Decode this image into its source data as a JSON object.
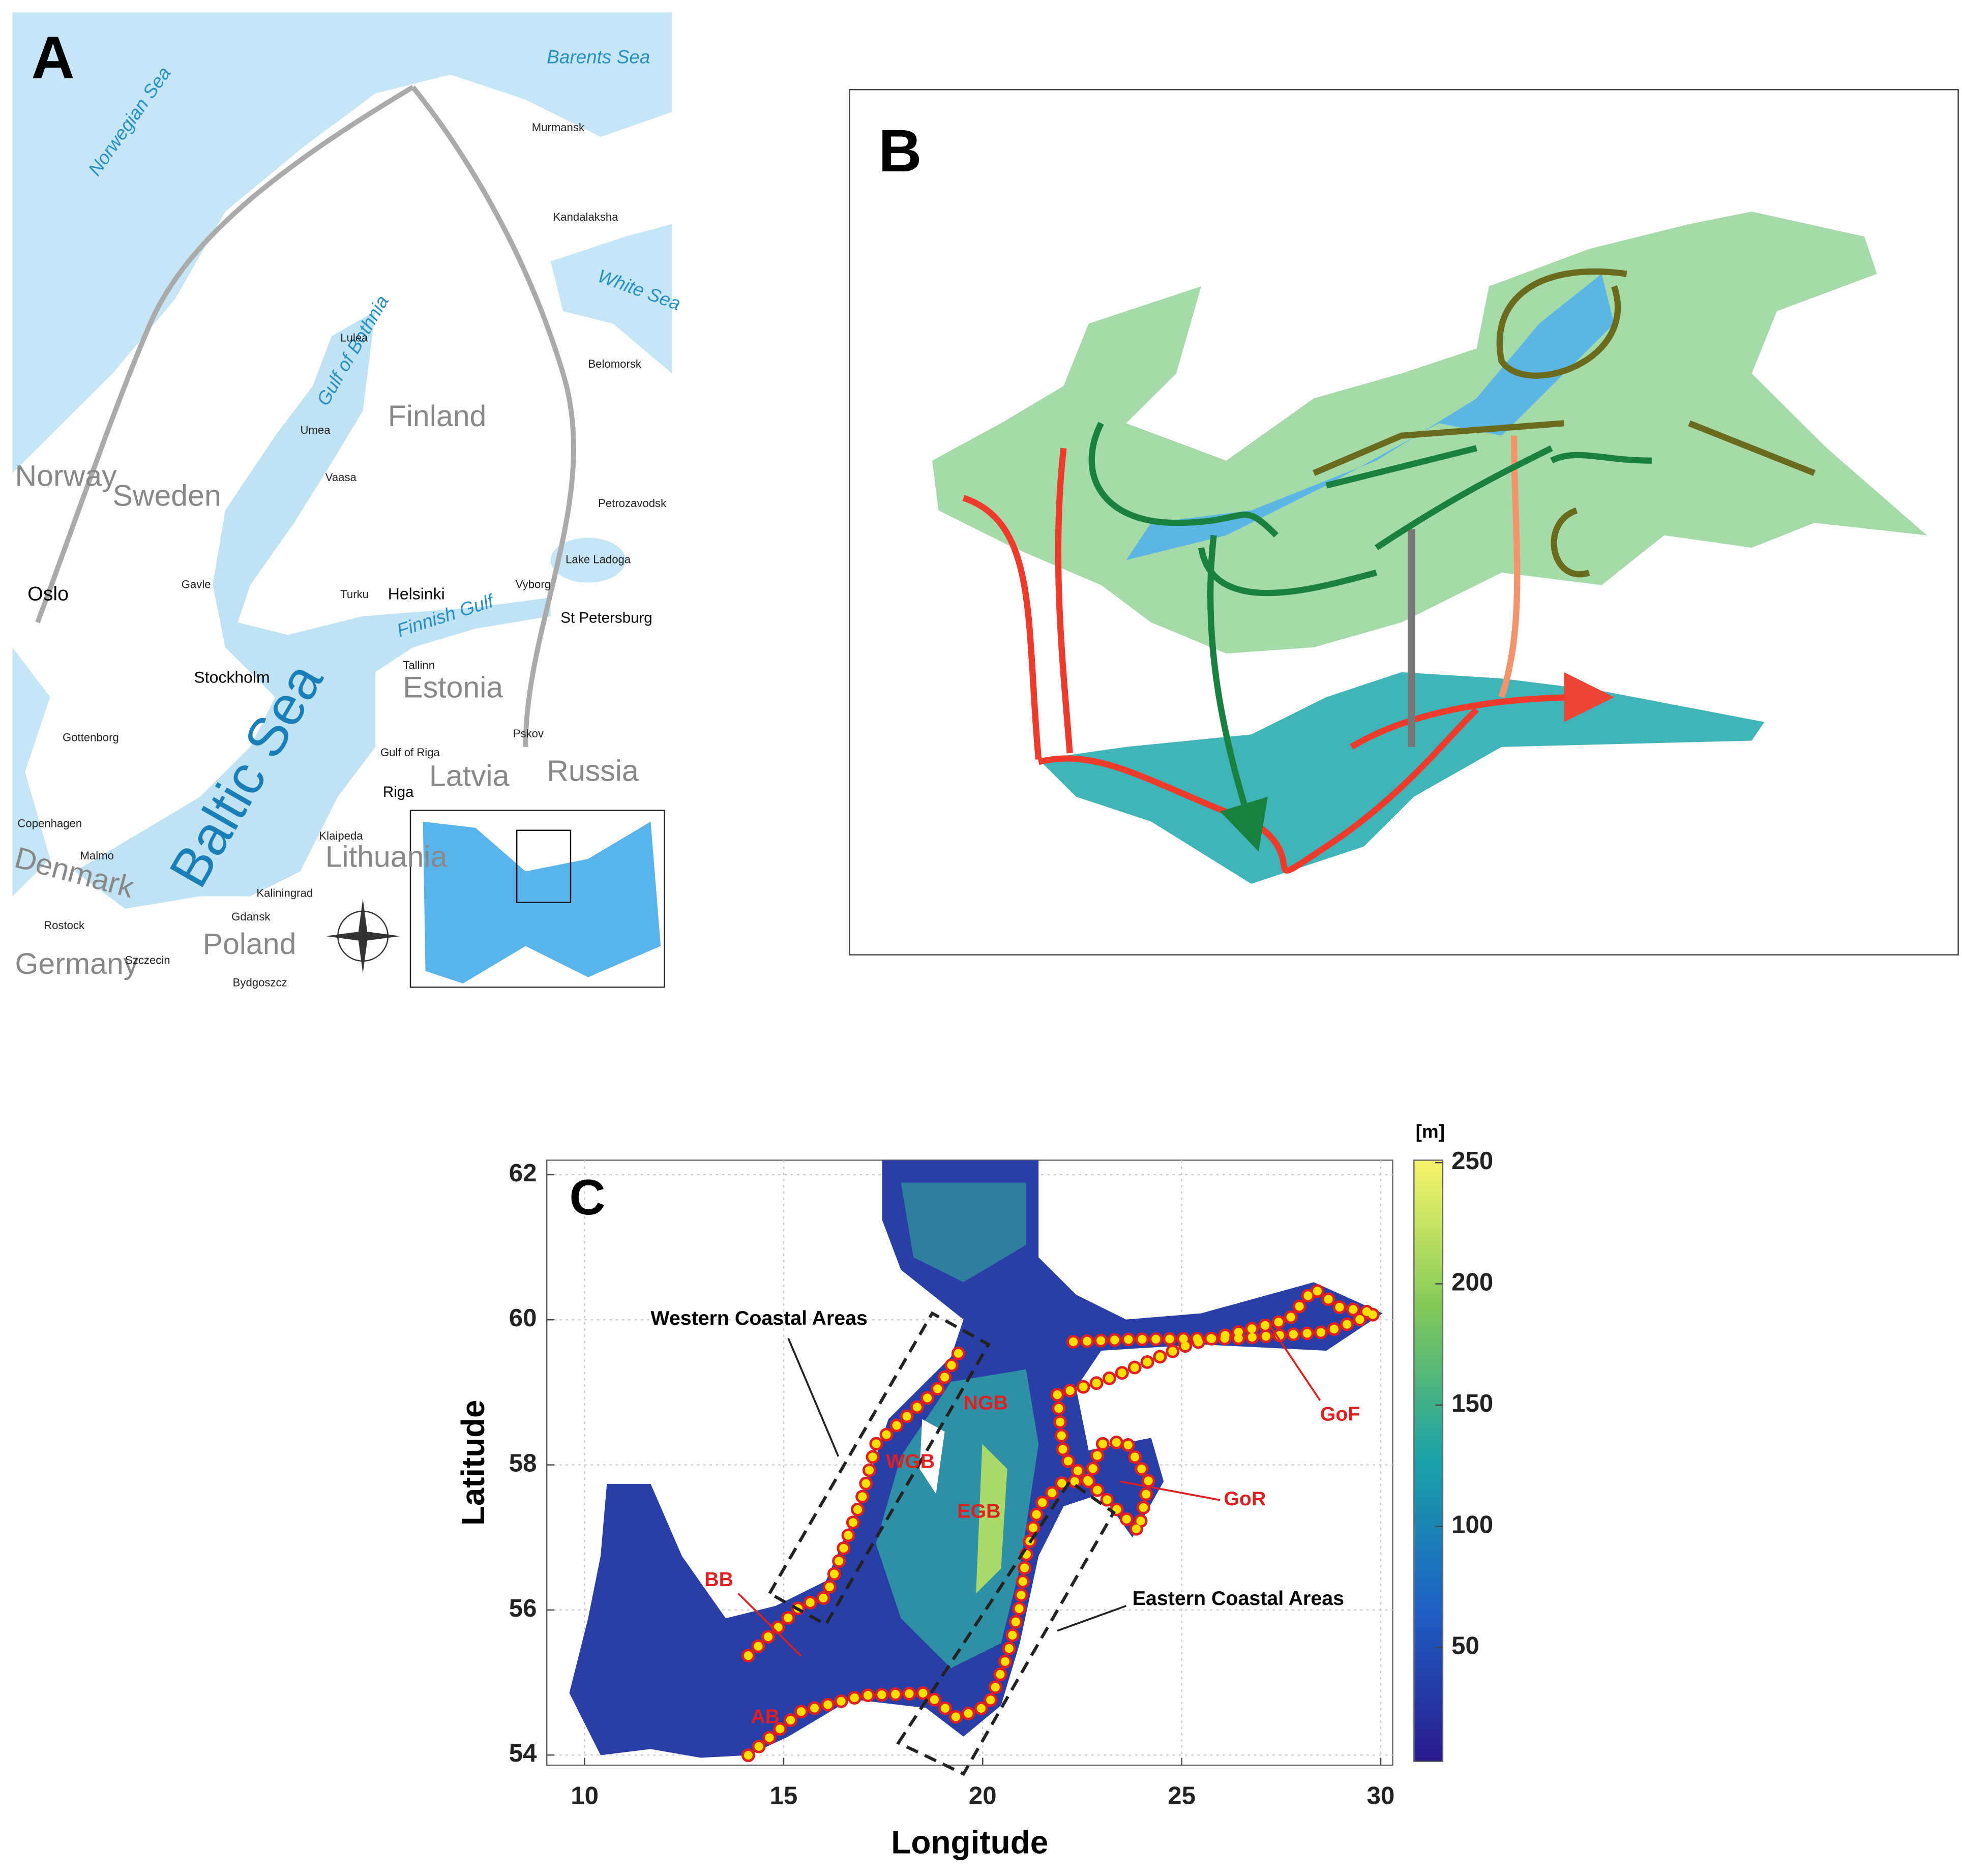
{
  "panel_a": {
    "label": "A",
    "places": [
      "Barents Sea",
      "Norwegian Sea",
      "White Sea",
      "Gulf of Bothnia",
      "Finland",
      "Norway",
      "Sweden",
      "Oslo",
      "Helsinki",
      "Finnish Gulf",
      "St Petersburg",
      "Stockholm",
      "Baltic Sea",
      "Estonia",
      "Tallinn",
      "Latvia",
      "Riga",
      "Russia",
      "Lithuania",
      "Copenhagen",
      "Denmark",
      "Malmo",
      "Poland",
      "Germany",
      "Gavle",
      "Turku",
      "Vaasa",
      "Umea",
      "Lulea",
      "Vyborg",
      "Lake Ladoga",
      "Gottenborg",
      "Pskov",
      "Klaipeda",
      "Kaliningrad",
      "Gdansk",
      "Rostock",
      "Szczecin",
      "Bydgoszcz",
      "Murmansk",
      "Kandalaksha",
      "Petrozavodsk",
      "Belomorsk",
      "Gulf of Riga"
    ]
  },
  "panel_b": {
    "label": "B"
  },
  "panel_c": {
    "label": "C",
    "xlabel": "Longitude",
    "ylabel": "Latitude",
    "xlim": [
      9.05,
      30.3
    ],
    "ylim": [
      53.86,
      62.2
    ],
    "xticks": [
      10,
      15,
      20,
      25,
      30
    ],
    "yticks": [
      54,
      56,
      58,
      60,
      62
    ],
    "grid": true,
    "colorbar": {
      "unit": "[m]",
      "lim": [
        3,
        251
      ],
      "ticks": [
        50,
        100,
        150,
        200,
        250
      ]
    },
    "annotations": [
      "Western Coastal Areas",
      "Eastern Coastal Areas",
      "NGB",
      "WGB",
      "EGB",
      "BB",
      "AB",
      "GoF",
      "GoR"
    ]
  }
}
